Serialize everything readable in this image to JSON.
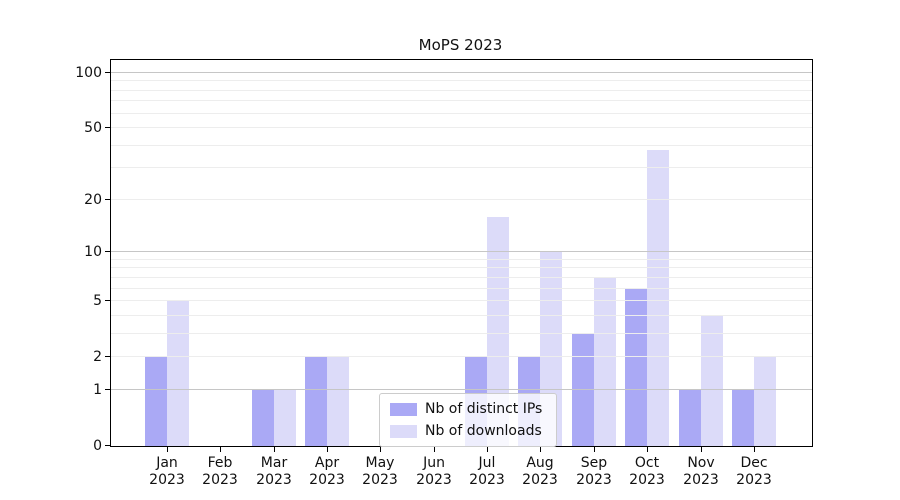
{
  "title": "MoPS 2023",
  "colors": {
    "distinct_ips": "#aaa9f5",
    "downloads": "#dcdbf9",
    "grid_major": "#c6c6c6",
    "grid_minor": "#ededed",
    "spine": "#000000"
  },
  "legend": {
    "items": [
      {
        "label": "Nb of distinct IPs",
        "color": "#aaa9f5"
      },
      {
        "label": "Nb of downloads",
        "color": "#dcdbf9"
      }
    ]
  },
  "chart_data": {
    "type": "bar",
    "title": "MoPS 2023",
    "categories": [
      "Jan 2023",
      "Feb 2023",
      "Mar 2023",
      "Apr 2023",
      "May 2023",
      "Jun 2023",
      "Jul 2023",
      "Aug 2023",
      "Sep 2023",
      "Oct 2023",
      "Nov 2023",
      "Dec 2023"
    ],
    "series": [
      {
        "name": "Nb of distinct IPs",
        "color": "#aaa9f5",
        "values": [
          2,
          0,
          1,
          2,
          0,
          0,
          2,
          2,
          3,
          6,
          1,
          1
        ]
      },
      {
        "name": "Nb of downloads",
        "color": "#dcdbf9",
        "values": [
          5,
          0,
          1,
          2,
          0,
          0,
          16,
          10,
          7,
          38,
          4,
          2
        ]
      }
    ],
    "xlabel": "",
    "ylabel": "",
    "yscale": "log1p",
    "ylim": [
      0,
      118
    ],
    "yticks": [
      0,
      1,
      2,
      5,
      10,
      20,
      50,
      100
    ],
    "grid": "major-and-minor-horizontal, drawn over bars",
    "grid_major_at": [
      1,
      10,
      100
    ],
    "grid_minor_at": [
      2,
      3,
      4,
      5,
      6,
      7,
      8,
      9,
      20,
      30,
      40,
      50,
      60,
      70,
      80,
      90
    ],
    "legend_position": "inside bottom, left-of-center"
  }
}
